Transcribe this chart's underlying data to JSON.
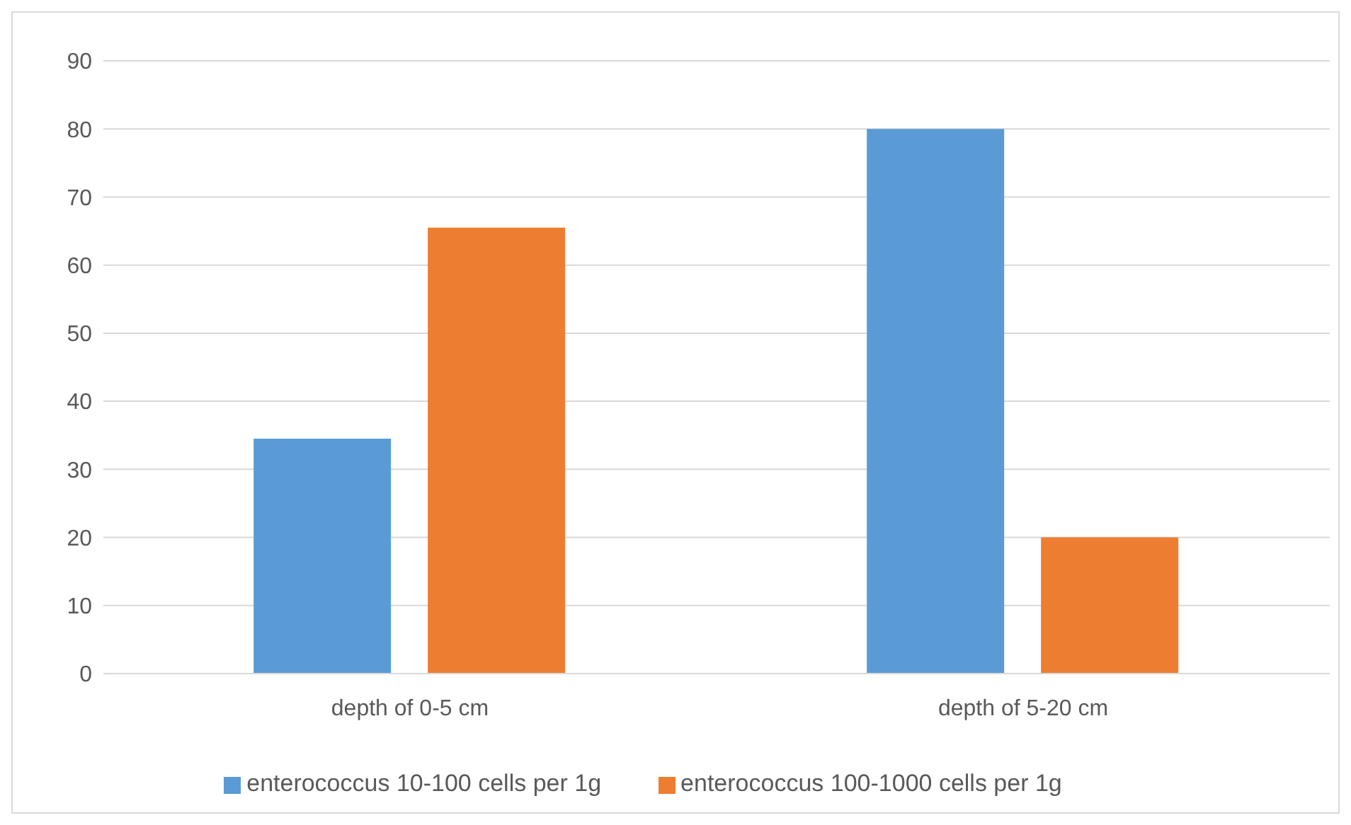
{
  "chart_data": {
    "type": "bar",
    "categories": [
      "depth of 0-5 cm",
      "depth of 5-20 cm"
    ],
    "series": [
      {
        "name": "enterococcus 10-100 cells per 1g",
        "color": "#5b9bd5",
        "values": [
          34.5,
          80
        ]
      },
      {
        "name": "enterococcus 100-1000 cells per 1g",
        "color": "#ed7d31",
        "values": [
          65.5,
          20
        ]
      }
    ],
    "ylim": [
      0,
      90
    ],
    "yticks": [
      0,
      10,
      20,
      30,
      40,
      50,
      60,
      70,
      80,
      90
    ],
    "grid": "y",
    "legend": "bottom"
  }
}
